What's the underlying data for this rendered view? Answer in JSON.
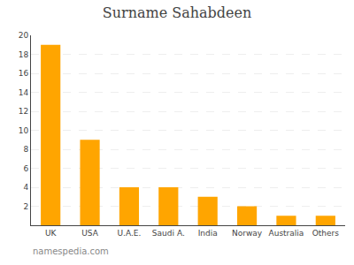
{
  "chart_data": {
    "type": "bar",
    "title": "Surname Sahabdeen",
    "categories": [
      "UK",
      "USA",
      "U.A.E.",
      "Saudi A.",
      "India",
      "Norway",
      "Australia",
      "Others"
    ],
    "values": [
      19,
      9,
      4,
      4,
      3,
      2,
      1,
      1
    ],
    "color": "#FFA500",
    "ylim": [
      0,
      20
    ],
    "yticks": [
      2,
      4,
      6,
      8,
      10,
      12,
      14,
      16,
      18,
      20
    ],
    "grid": true,
    "annotations": [
      "namespedia.com"
    ]
  }
}
